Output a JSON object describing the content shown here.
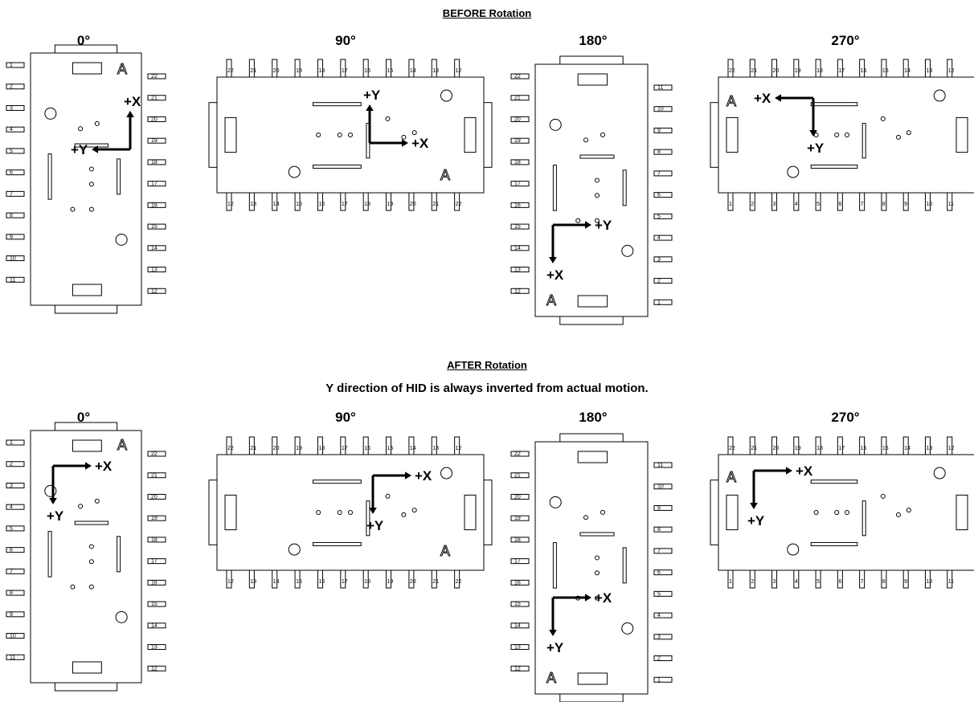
{
  "headings": {
    "before": "BEFORE Rotation",
    "after": "AFTER Rotation",
    "note": "Y direction of HID is always inverted from actual motion."
  },
  "angles": [
    "0°",
    "90°",
    "180°",
    "270°"
  ],
  "axis_labels": {
    "x": "+X",
    "y": "+Y"
  },
  "board_mark": "A",
  "pins": {
    "left_or_bottom": [
      "1",
      "2",
      "3",
      "4",
      "5",
      "6",
      "7",
      "8",
      "9",
      "10",
      "11"
    ],
    "right_or_top": [
      "12",
      "13",
      "14",
      "15",
      "16",
      "17",
      "18",
      "19",
      "20",
      "21",
      "22"
    ]
  },
  "colors": {
    "line": "#000000",
    "background": "#ffffff"
  },
  "panels": [
    {
      "section": "before",
      "angle": "0°",
      "x_dir": "up",
      "y_dir": "left"
    },
    {
      "section": "before",
      "angle": "90°",
      "x_dir": "right",
      "y_dir": "up"
    },
    {
      "section": "before",
      "angle": "180°",
      "x_dir": "down",
      "y_dir": "right"
    },
    {
      "section": "before",
      "angle": "270°",
      "x_dir": "left",
      "y_dir": "down"
    },
    {
      "section": "after",
      "angle": "0°",
      "x_dir": "right",
      "y_dir": "down"
    },
    {
      "section": "after",
      "angle": "90°",
      "x_dir": "right",
      "y_dir": "down"
    },
    {
      "section": "after",
      "angle": "180°",
      "x_dir": "right",
      "y_dir": "down"
    },
    {
      "section": "after",
      "angle": "270°",
      "x_dir": "right",
      "y_dir": "down"
    }
  ]
}
